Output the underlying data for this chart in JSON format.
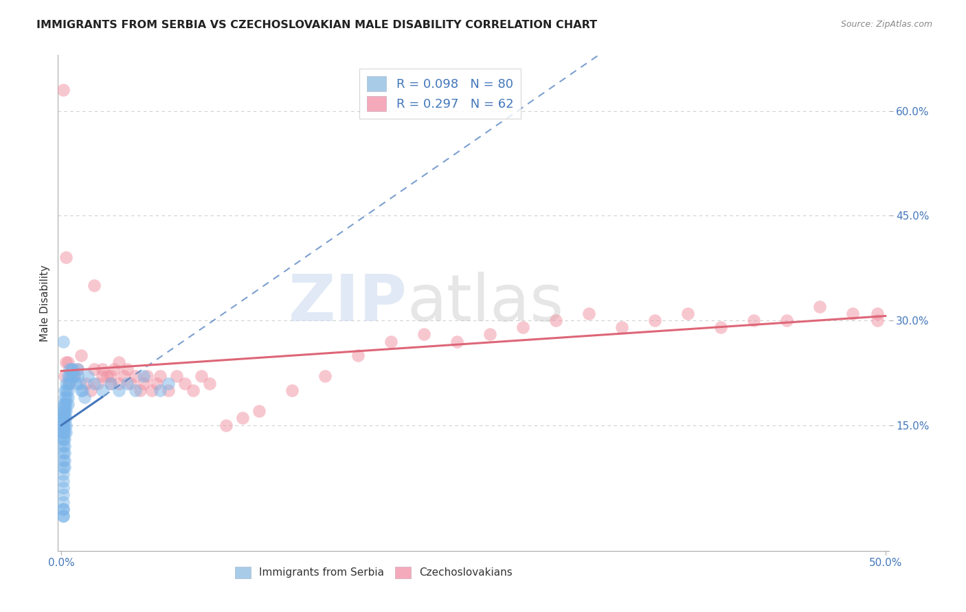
{
  "title": "IMMIGRANTS FROM SERBIA VS CZECHOSLOVAKIAN MALE DISABILITY CORRELATION CHART",
  "source": "Source: ZipAtlas.com",
  "ylabel": "Male Disability",
  "xlim": [
    -0.002,
    0.502
  ],
  "ylim": [
    -0.03,
    0.68
  ],
  "xticks": [
    0.0,
    0.5
  ],
  "xtick_labels": [
    "0.0%",
    "50.0%"
  ],
  "yticks": [
    0.15,
    0.3,
    0.45,
    0.6
  ],
  "ytick_labels": [
    "15.0%",
    "30.0%",
    "45.0%",
    "60.0%"
  ],
  "grid_yticks": [
    0.15,
    0.3,
    0.45,
    0.6
  ],
  "serbia_color": "#7ab4e8",
  "czech_color": "#f090a0",
  "serbia_line_color": "#4477bb",
  "czech_line_color": "#dd6677",
  "serbia_alpha": 0.5,
  "czech_alpha": 0.5,
  "watermark_zip": "ZIP",
  "watermark_atlas": "atlas",
  "background_color": "#ffffff",
  "grid_color": "#d0d0d0",
  "serbia_x": [
    0.001,
    0.001,
    0.001,
    0.001,
    0.001,
    0.001,
    0.001,
    0.001,
    0.001,
    0.001,
    0.001,
    0.001,
    0.001,
    0.001,
    0.001,
    0.001,
    0.001,
    0.001,
    0.001,
    0.001,
    0.001,
    0.001,
    0.001,
    0.001,
    0.001,
    0.001,
    0.001,
    0.002,
    0.002,
    0.002,
    0.002,
    0.002,
    0.002,
    0.002,
    0.002,
    0.002,
    0.002,
    0.002,
    0.002,
    0.002,
    0.002,
    0.002,
    0.003,
    0.003,
    0.003,
    0.003,
    0.003,
    0.003,
    0.003,
    0.003,
    0.004,
    0.004,
    0.004,
    0.004,
    0.004,
    0.005,
    0.005,
    0.005,
    0.006,
    0.006,
    0.007,
    0.008,
    0.009,
    0.01,
    0.01,
    0.011,
    0.012,
    0.013,
    0.014,
    0.016,
    0.02,
    0.025,
    0.03,
    0.035,
    0.04,
    0.045,
    0.05,
    0.06,
    0.065,
    0.001
  ],
  "serbia_y": [
    0.18,
    0.17,
    0.17,
    0.16,
    0.16,
    0.16,
    0.15,
    0.15,
    0.15,
    0.14,
    0.14,
    0.14,
    0.13,
    0.13,
    0.12,
    0.11,
    0.1,
    0.09,
    0.08,
    0.07,
    0.06,
    0.05,
    0.04,
    0.03,
    0.02,
    0.02,
    0.03,
    0.2,
    0.19,
    0.18,
    0.18,
    0.17,
    0.17,
    0.16,
    0.16,
    0.15,
    0.14,
    0.13,
    0.12,
    0.11,
    0.1,
    0.09,
    0.21,
    0.2,
    0.19,
    0.18,
    0.17,
    0.16,
    0.15,
    0.14,
    0.22,
    0.21,
    0.2,
    0.19,
    0.18,
    0.23,
    0.22,
    0.21,
    0.23,
    0.22,
    0.23,
    0.22,
    0.21,
    0.23,
    0.22,
    0.21,
    0.2,
    0.2,
    0.19,
    0.22,
    0.21,
    0.2,
    0.21,
    0.2,
    0.21,
    0.2,
    0.22,
    0.2,
    0.21,
    0.27
  ],
  "czech_x": [
    0.001,
    0.002,
    0.003,
    0.004,
    0.005,
    0.006,
    0.008,
    0.01,
    0.012,
    0.015,
    0.018,
    0.02,
    0.022,
    0.025,
    0.025,
    0.028,
    0.03,
    0.03,
    0.032,
    0.035,
    0.035,
    0.038,
    0.04,
    0.042,
    0.045,
    0.048,
    0.05,
    0.052,
    0.055,
    0.058,
    0.06,
    0.065,
    0.07,
    0.075,
    0.08,
    0.085,
    0.09,
    0.1,
    0.11,
    0.12,
    0.14,
    0.16,
    0.18,
    0.2,
    0.22,
    0.24,
    0.26,
    0.28,
    0.3,
    0.32,
    0.34,
    0.36,
    0.38,
    0.4,
    0.42,
    0.44,
    0.46,
    0.48,
    0.495,
    0.495,
    0.003,
    0.02
  ],
  "czech_y": [
    0.63,
    0.22,
    0.24,
    0.24,
    0.21,
    0.22,
    0.22,
    0.23,
    0.25,
    0.21,
    0.2,
    0.23,
    0.21,
    0.23,
    0.22,
    0.22,
    0.21,
    0.22,
    0.23,
    0.24,
    0.21,
    0.22,
    0.23,
    0.21,
    0.22,
    0.2,
    0.21,
    0.22,
    0.2,
    0.21,
    0.22,
    0.2,
    0.22,
    0.21,
    0.2,
    0.22,
    0.21,
    0.15,
    0.16,
    0.17,
    0.2,
    0.22,
    0.25,
    0.27,
    0.28,
    0.27,
    0.28,
    0.29,
    0.3,
    0.31,
    0.29,
    0.3,
    0.31,
    0.29,
    0.3,
    0.3,
    0.32,
    0.31,
    0.3,
    0.31,
    0.39,
    0.35
  ],
  "legend_label1": "R = 0.098",
  "legend_n1": "N = 80",
  "legend_label2": "R = 0.297",
  "legend_n2": "N = 62",
  "legend_color1": "#a8cce8",
  "legend_color2": "#f5aabb"
}
